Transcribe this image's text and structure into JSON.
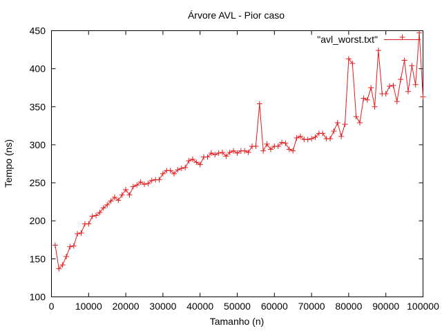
{
  "chart_data": {
    "type": "line",
    "title": "Árvore AVL - Pior caso",
    "xlabel": "Tamanho (n)",
    "ylabel": "Tempo (ns)",
    "xlim": [
      0,
      100000
    ],
    "ylim": [
      100,
      450
    ],
    "xticks": [
      0,
      10000,
      20000,
      30000,
      40000,
      50000,
      60000,
      70000,
      80000,
      90000,
      100000
    ],
    "yticks": [
      100,
      150,
      200,
      250,
      300,
      350,
      400,
      450
    ],
    "xtick_labels": [
      "0",
      "10000",
      "20000",
      "30000",
      "40000",
      "50000",
      "60000",
      "70000",
      "80000",
      "90000",
      "100000"
    ],
    "ytick_labels": [
      "100",
      "150",
      "200",
      "250",
      "300",
      "350",
      "400",
      "450"
    ],
    "grid": false,
    "legend_position": "top-right",
    "series": [
      {
        "name": "\"avl_worst.txt\"",
        "color": "#e41a1c",
        "marker": "plus",
        "x": [
          1000,
          2000,
          3000,
          4000,
          5000,
          6000,
          7000,
          8000,
          9000,
          10000,
          11000,
          12000,
          13000,
          14000,
          15000,
          16000,
          17000,
          18000,
          19000,
          20000,
          21000,
          22000,
          23000,
          24000,
          25000,
          26000,
          27000,
          28000,
          29000,
          30000,
          31000,
          32000,
          33000,
          34000,
          35000,
          36000,
          37000,
          38000,
          39000,
          40000,
          41000,
          42000,
          43000,
          44000,
          45000,
          46000,
          47000,
          48000,
          49000,
          50000,
          51000,
          52000,
          53000,
          54000,
          55000,
          56000,
          57000,
          58000,
          59000,
          60000,
          61000,
          62000,
          63000,
          64000,
          65000,
          66000,
          67000,
          68000,
          69000,
          70000,
          71000,
          72000,
          73000,
          74000,
          75000,
          76000,
          77000,
          78000,
          79000,
          80000,
          81000,
          82000,
          83000,
          84000,
          85000,
          86000,
          87000,
          88000,
          89000,
          90000,
          91000,
          92000,
          93000,
          94000,
          95000,
          96000,
          97000,
          98000,
          99000,
          100000
        ],
        "y": [
          168,
          137,
          142,
          153,
          166,
          167,
          183,
          184,
          196,
          196,
          206,
          207,
          211,
          217,
          221,
          226,
          231,
          227,
          234,
          241,
          234,
          245,
          247,
          251,
          248,
          249,
          253,
          254,
          254,
          262,
          266,
          266,
          262,
          267,
          269,
          270,
          279,
          281,
          277,
          274,
          284,
          284,
          289,
          287,
          289,
          290,
          285,
          290,
          292,
          289,
          292,
          292,
          290,
          298,
          298,
          354,
          292,
          301,
          294,
          298,
          298,
          303,
          302,
          294,
          292,
          309,
          311,
          307,
          307,
          308,
          310,
          315,
          315,
          308,
          308,
          318,
          329,
          311,
          327,
          413,
          407,
          337,
          329,
          361,
          359,
          375,
          350,
          424,
          367,
          367,
          377,
          378,
          357,
          386,
          411,
          370,
          404,
          379,
          447,
          363
        ]
      }
    ]
  }
}
